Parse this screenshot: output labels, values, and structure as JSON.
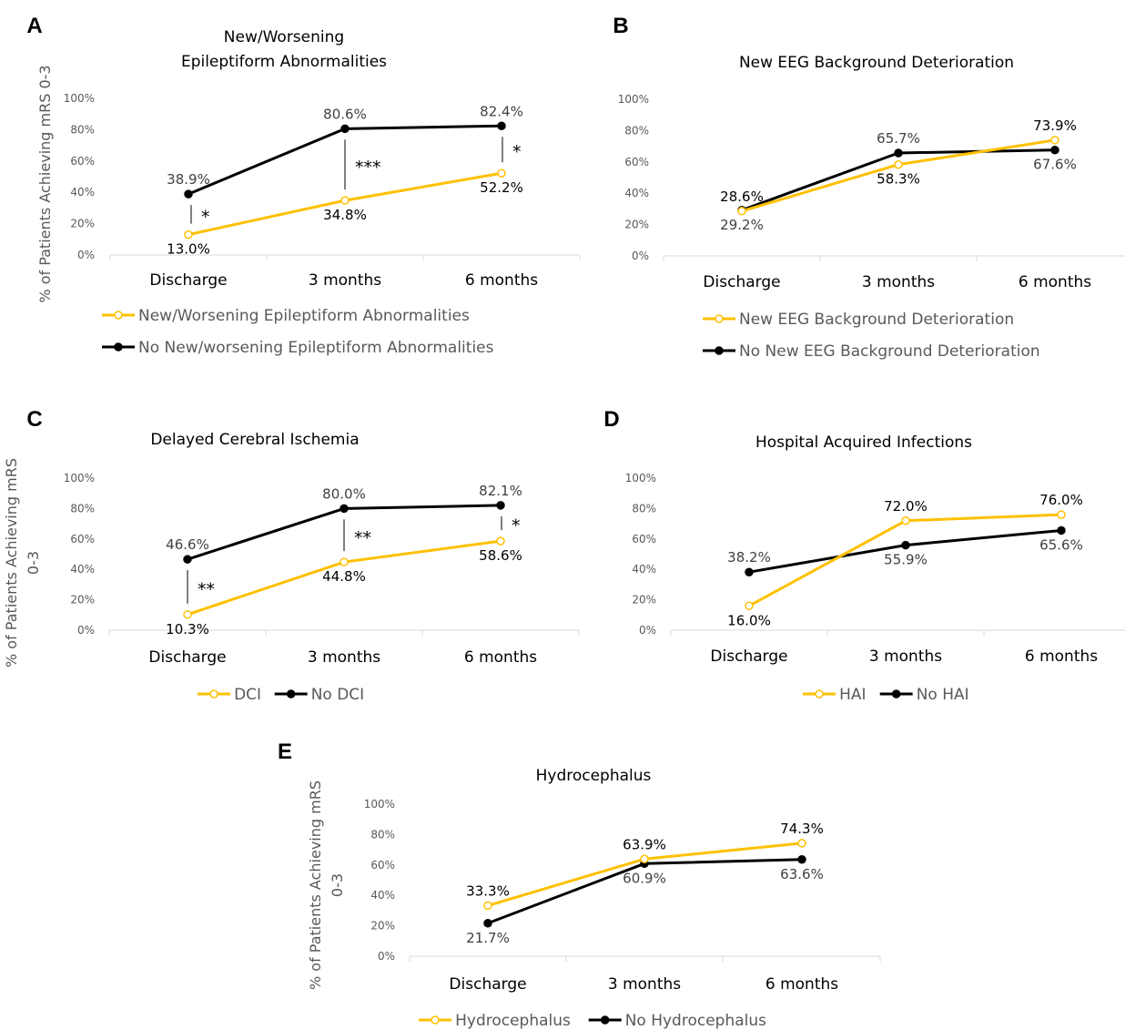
{
  "colors": {
    "yellow": "#FFC000",
    "black": "#000000",
    "axis": "#D9D9D9",
    "tick_text": "#595959"
  },
  "chart_data": [
    {
      "panel": "A",
      "type": "line",
      "title_lines": [
        "New/Worsening",
        "Epileptiform Abnormalities"
      ],
      "ylabel_lines": [
        "% of Patients Achieving mRS 0-3"
      ],
      "categories": [
        "Discharge",
        "3 months",
        "6 months"
      ],
      "yticks": [
        "0%",
        "20%",
        "40%",
        "60%",
        "80%",
        "100%"
      ],
      "ylim": [
        0,
        100
      ],
      "series": [
        {
          "name": "New/Worsening Epileptiform Abnormalities",
          "color": "yellow",
          "marker": "open",
          "values": [
            13.0,
            34.8,
            52.2
          ],
          "labels": [
            "13.0%",
            "34.8%",
            "52.2%"
          ],
          "label_pos": [
            "below",
            "below",
            "below"
          ]
        },
        {
          "name": "No New/worsening Epileptiform Abnormalities",
          "color": "black",
          "marker": "filled",
          "values": [
            38.9,
            80.6,
            82.4
          ],
          "labels": [
            "38.9%",
            "80.6%",
            "82.4%"
          ],
          "label_pos": [
            "above",
            "above",
            "above"
          ]
        }
      ],
      "significance": [
        "*",
        "***",
        "*"
      ],
      "legend_layout": "stacked"
    },
    {
      "panel": "B",
      "type": "line",
      "title_lines": [
        "New EEG Background Deterioration"
      ],
      "ylabel_lines": [],
      "categories": [
        "Discharge",
        "3 months",
        "6 months"
      ],
      "yticks": [
        "0%",
        "20%",
        "40%",
        "60%",
        "80%",
        "100%"
      ],
      "ylim": [
        0,
        100
      ],
      "series": [
        {
          "name": "New EEG Background Deterioration",
          "color": "yellow",
          "marker": "open",
          "values": [
            28.6,
            58.3,
            73.9
          ],
          "labels": [
            "28.6%",
            "58.3%",
            "73.9%"
          ],
          "label_pos": [
            "above",
            "below",
            "above"
          ]
        },
        {
          "name": "No New EEG Background Deterioration",
          "color": "black",
          "marker": "filled",
          "values": [
            29.2,
            65.7,
            67.6
          ],
          "labels": [
            "29.2%",
            "65.7%",
            "67.6%"
          ],
          "label_pos": [
            "below",
            "above",
            "below"
          ]
        }
      ],
      "significance": [
        "",
        "",
        ""
      ],
      "legend_layout": "stacked"
    },
    {
      "panel": "C",
      "type": "line",
      "title_lines": [
        "Delayed Cerebral Ischemia"
      ],
      "ylabel_lines": [
        "% of Patients Achieving mRS",
        "0-3"
      ],
      "categories": [
        "Discharge",
        "3 months",
        "6 months"
      ],
      "yticks": [
        "0%",
        "20%",
        "40%",
        "60%",
        "80%",
        "100%"
      ],
      "ylim": [
        0,
        100
      ],
      "series": [
        {
          "name": "DCI",
          "color": "yellow",
          "marker": "open",
          "values": [
            10.3,
            44.8,
            58.6
          ],
          "labels": [
            "10.3%",
            "44.8%",
            "58.6%"
          ],
          "label_pos": [
            "below",
            "below",
            "below"
          ]
        },
        {
          "name": "No DCI",
          "color": "black",
          "marker": "filled",
          "values": [
            46.6,
            80.0,
            82.1
          ],
          "labels": [
            "46.6%",
            "80.0%",
            "82.1%"
          ],
          "label_pos": [
            "above",
            "above",
            "above"
          ]
        }
      ],
      "significance": [
        "**",
        "**",
        "*"
      ],
      "legend_layout": "inline"
    },
    {
      "panel": "D",
      "type": "line",
      "title_lines": [
        "Hospital Acquired Infections"
      ],
      "ylabel_lines": [],
      "categories": [
        "Discharge",
        "3 months",
        "6 months"
      ],
      "yticks": [
        "0%",
        "20%",
        "40%",
        "60%",
        "80%",
        "100%"
      ],
      "ylim": [
        0,
        100
      ],
      "series": [
        {
          "name": "HAI",
          "color": "yellow",
          "marker": "open",
          "values": [
            16.0,
            72.0,
            76.0
          ],
          "labels": [
            "16.0%",
            "72.0%",
            "76.0%"
          ],
          "label_pos": [
            "below",
            "above",
            "above"
          ]
        },
        {
          "name": "No HAI",
          "color": "black",
          "marker": "filled",
          "values": [
            38.2,
            55.9,
            65.6
          ],
          "labels": [
            "38.2%",
            "55.9%",
            "65.6%"
          ],
          "label_pos": [
            "above",
            "below",
            "below"
          ]
        }
      ],
      "significance": [
        "",
        "",
        ""
      ],
      "legend_layout": "inline"
    },
    {
      "panel": "E",
      "type": "line",
      "title_lines": [
        "Hydrocephalus"
      ],
      "ylabel_lines": [
        "% of Patients Achieving mRS",
        "0-3"
      ],
      "categories": [
        "Discharge",
        "3 months",
        "6 months"
      ],
      "yticks": [
        "0%",
        "20%",
        "40%",
        "60%",
        "80%",
        "100%"
      ],
      "ylim": [
        0,
        100
      ],
      "series": [
        {
          "name": "Hydrocephalus",
          "color": "yellow",
          "marker": "open",
          "values": [
            33.3,
            63.9,
            74.3
          ],
          "labels": [
            "33.3%",
            "63.9%",
            "74.3%"
          ],
          "label_pos": [
            "above",
            "above",
            "above"
          ]
        },
        {
          "name": "No Hydrocephalus",
          "color": "black",
          "marker": "filled",
          "values": [
            21.7,
            60.9,
            63.6
          ],
          "labels": [
            "21.7%",
            "60.9%",
            "63.6%"
          ],
          "label_pos": [
            "below",
            "below",
            "below"
          ]
        }
      ],
      "significance": [
        "",
        "",
        ""
      ],
      "legend_layout": "inline"
    }
  ]
}
